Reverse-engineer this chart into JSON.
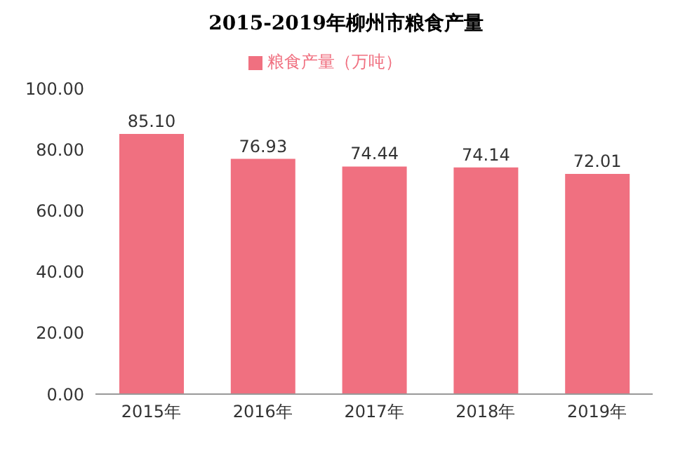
{
  "chart_data": {
    "type": "bar",
    "title": "2015-2019年柳州市粮食产量",
    "categories": [
      "2015年",
      "2016年",
      "2017年",
      "2018年",
      "2019年"
    ],
    "series": [
      {
        "name": "粮食产量（万吨）",
        "color": "#f07080",
        "values": [
          85.1,
          76.93,
          74.44,
          74.14,
          72.01
        ]
      }
    ],
    "value_labels": [
      "85.10",
      "76.93",
      "74.44",
      "74.14",
      "72.01"
    ],
    "ylim": [
      0,
      100
    ],
    "yticks": [
      {
        "value": 0,
        "label": "0.00"
      },
      {
        "value": 20,
        "label": "20.00"
      },
      {
        "value": 40,
        "label": "40.00"
      },
      {
        "value": 60,
        "label": "60.00"
      },
      {
        "value": 80,
        "label": "80.00"
      },
      {
        "value": 100,
        "label": "100.00"
      }
    ],
    "grid": false,
    "legend": "top"
  }
}
